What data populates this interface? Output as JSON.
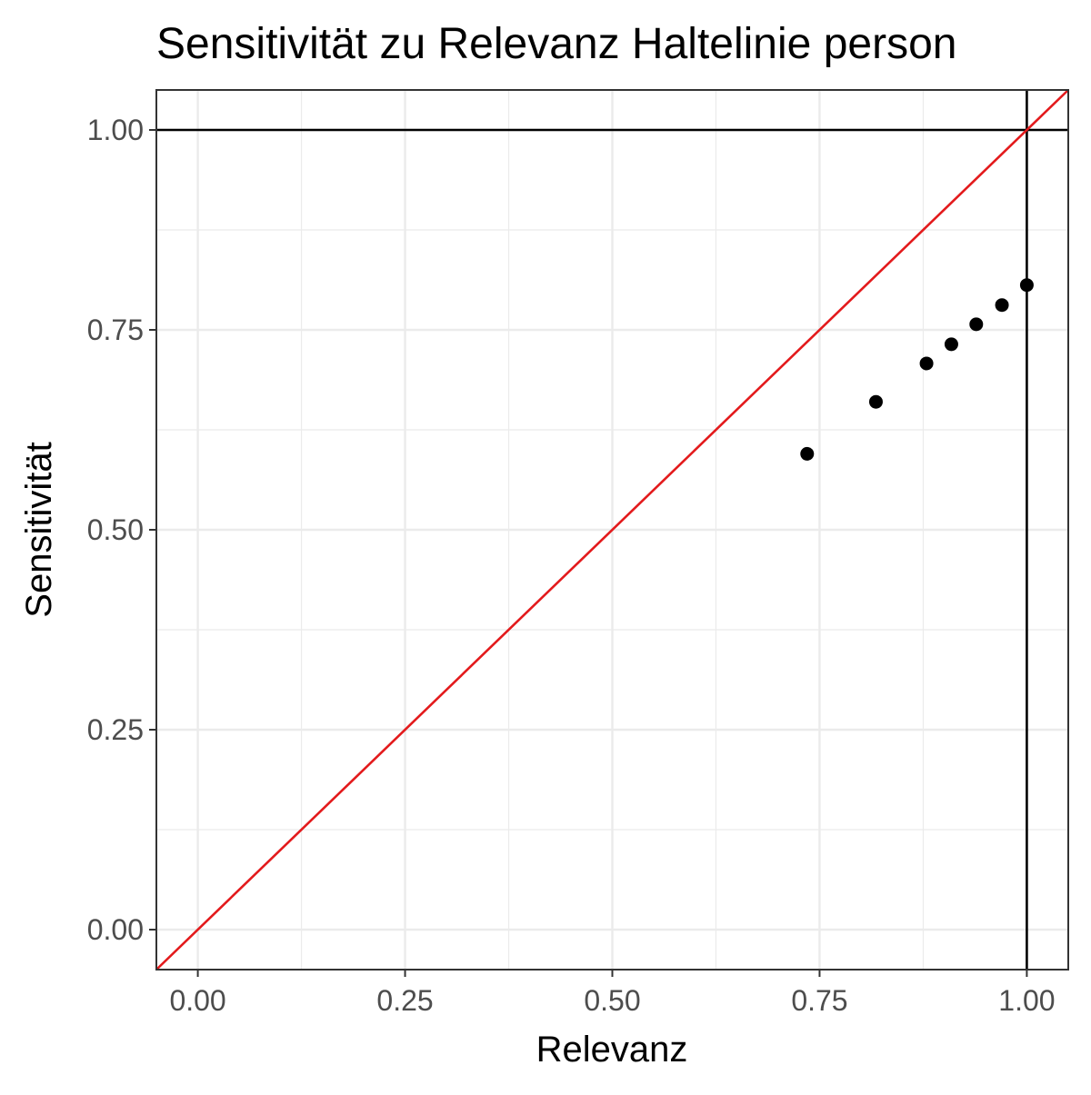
{
  "chart_data": {
    "type": "scatter",
    "title": "Sensitivität zu Relevanz Haltelinie person",
    "xlabel": "Relevanz",
    "ylabel": "Sensitivität",
    "xlim": [
      -0.05,
      1.05
    ],
    "ylim": [
      -0.05,
      1.05
    ],
    "x_ticks": [
      "0.00",
      "0.25",
      "0.50",
      "0.75",
      "1.00"
    ],
    "y_ticks": [
      "0.00",
      "0.25",
      "0.50",
      "0.75",
      "1.00"
    ],
    "grid": true,
    "theme": "bw",
    "reference_lines": {
      "horizontal_y": 1.0,
      "vertical_x": 1.0,
      "diagonal": {
        "intercept": 0,
        "slope": 1,
        "color": "#e31a1c"
      }
    },
    "series": [
      {
        "color": "#000000",
        "points": [
          {
            "x": 0.735,
            "y": 0.595
          },
          {
            "x": 0.818,
            "y": 0.66
          },
          {
            "x": 0.879,
            "y": 0.708
          },
          {
            "x": 0.909,
            "y": 0.732
          },
          {
            "x": 0.939,
            "y": 0.757
          },
          {
            "x": 0.97,
            "y": 0.781
          },
          {
            "x": 1.0,
            "y": 0.806
          }
        ]
      }
    ]
  }
}
